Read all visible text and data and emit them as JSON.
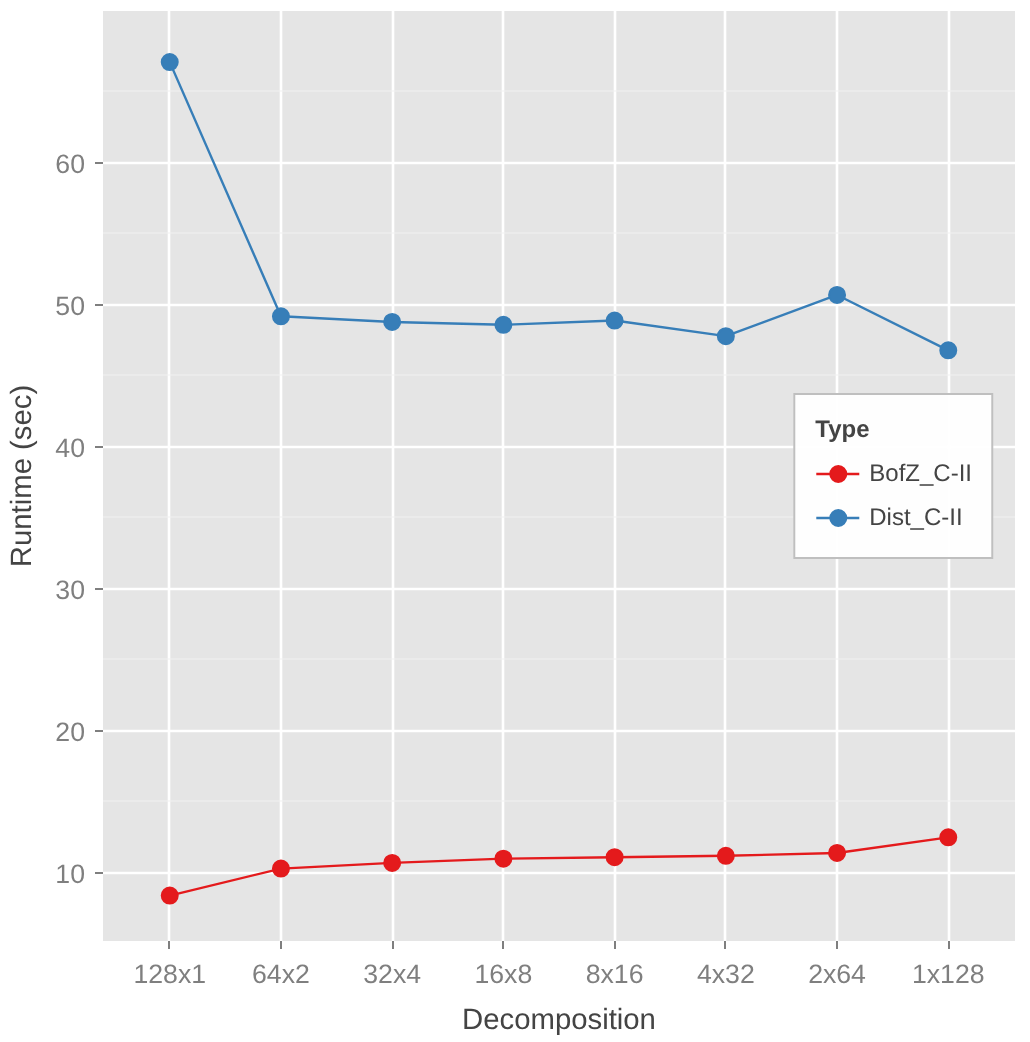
{
  "chart_data": {
    "type": "line",
    "xlabel": "Decomposition",
    "ylabel": "Runtime (sec)",
    "legend_title": "Type",
    "categories": [
      "128x1",
      "64x2",
      "32x4",
      "16x8",
      "8x16",
      "4x32",
      "2x64",
      "1x128"
    ],
    "series": [
      {
        "name": "BofZ_C-II",
        "color": "#e41a1c",
        "values": [
          8.4,
          10.3,
          10.7,
          11.0,
          11.1,
          11.2,
          11.4,
          12.5
        ]
      },
      {
        "name": "Dist_C-II",
        "color": "#377eb8",
        "values": [
          67.1,
          49.2,
          48.8,
          48.6,
          48.9,
          47.8,
          50.7,
          46.8
        ]
      }
    ],
    "ylim": [
      5.2,
      70.7
    ],
    "yticks": [
      10,
      20,
      30,
      40,
      50,
      60
    ],
    "grid": true,
    "legend": "right",
    "marker": "circle",
    "line_style": "solid"
  }
}
